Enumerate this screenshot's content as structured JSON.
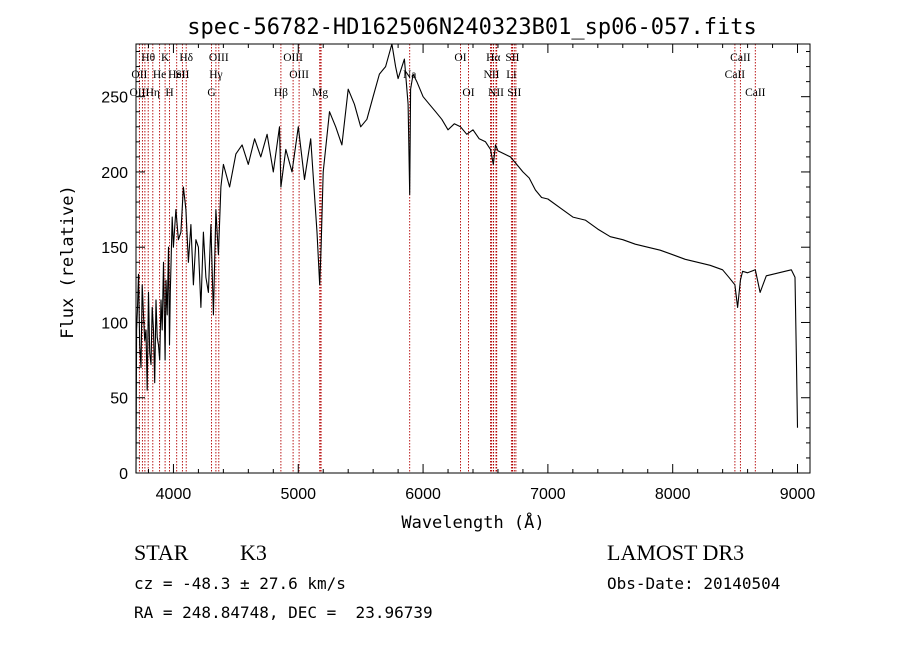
{
  "chart_data": {
    "type": "line",
    "title": "spec-56782-HD162506N240323B01_sp06-057.fits",
    "xlabel": "Wavelength (Å)",
    "ylabel": "Flux (relative)",
    "xlim": [
      3700,
      9100
    ],
    "ylim": [
      0,
      285
    ],
    "xticks": [
      4000,
      5000,
      6000,
      7000,
      8000,
      9000
    ],
    "xtick_labels": [
      "4000",
      "5000",
      "6000",
      "7000",
      "8000",
      "9000"
    ],
    "yticks": [
      0,
      50,
      100,
      150,
      200,
      250
    ],
    "ytick_labels": [
      "0",
      "50",
      "100",
      "150",
      "200",
      "250"
    ],
    "series": [
      {
        "name": "flux",
        "x": [
          3700,
          3705,
          3712,
          3720,
          3730,
          3740,
          3750,
          3760,
          3770,
          3780,
          3790,
          3800,
          3810,
          3820,
          3830,
          3840,
          3850,
          3860,
          3870,
          3880,
          3890,
          3900,
          3910,
          3920,
          3933,
          3940,
          3950,
          3960,
          3968,
          3975,
          3990,
          4000,
          4020,
          4040,
          4060,
          4080,
          4100,
          4120,
          4140,
          4160,
          4180,
          4200,
          4220,
          4240,
          4260,
          4280,
          4300,
          4320,
          4340,
          4360,
          4380,
          4400,
          4450,
          4500,
          4550,
          4600,
          4650,
          4700,
          4750,
          4800,
          4850,
          4861,
          4900,
          4950,
          5000,
          5050,
          5100,
          5150,
          5172,
          5183,
          5200,
          5250,
          5300,
          5350,
          5400,
          5450,
          5500,
          5550,
          5600,
          5650,
          5700,
          5750,
          5780,
          5800,
          5850,
          5880,
          5893,
          5900,
          5920,
          5950,
          6000,
          6050,
          6100,
          6150,
          6200,
          6250,
          6300,
          6350,
          6400,
          6450,
          6500,
          6540,
          6563,
          6580,
          6600,
          6650,
          6700,
          6750,
          6800,
          6850,
          6900,
          6950,
          7000,
          7100,
          7200,
          7300,
          7400,
          7500,
          7600,
          7700,
          7800,
          7900,
          8000,
          8100,
          8200,
          8300,
          8400,
          8450,
          8498,
          8520,
          8542,
          8560,
          8600,
          8662,
          8700,
          8750,
          8800,
          8850,
          8900,
          8950,
          8980,
          8990,
          9000
        ],
        "y": [
          0,
          95,
          110,
          132,
          85,
          70,
          125,
          105,
          88,
          95,
          55,
          120,
          80,
          72,
          110,
          95,
          60,
          115,
          90,
          85,
          75,
          115,
          95,
          140,
          75,
          128,
          105,
          150,
          85,
          120,
          170,
          150,
          175,
          155,
          160,
          190,
          175,
          140,
          165,
          125,
          155,
          150,
          110,
          160,
          130,
          120,
          165,
          105,
          175,
          145,
          190,
          205,
          190,
          212,
          218,
          205,
          222,
          210,
          225,
          200,
          230,
          190,
          215,
          200,
          230,
          195,
          222,
          160,
          125,
          150,
          200,
          240,
          230,
          218,
          255,
          245,
          230,
          235,
          250,
          265,
          270,
          285,
          270,
          262,
          275,
          245,
          185,
          255,
          265,
          260,
          250,
          245,
          240,
          235,
          228,
          232,
          230,
          225,
          228,
          222,
          220,
          215,
          205,
          218,
          214,
          212,
          210,
          205,
          200,
          196,
          188,
          183,
          182,
          176,
          170,
          168,
          162,
          157,
          155,
          152,
          150,
          148,
          145,
          142,
          140,
          138,
          135,
          130,
          125,
          110,
          128,
          134,
          133,
          135,
          120,
          131,
          132,
          133,
          134,
          135,
          130,
          80,
          30
        ]
      }
    ],
    "line_markers": [
      {
        "label": "Hθ",
        "wavelength": 3798,
        "row": 1
      },
      {
        "label": "K",
        "wavelength": 3933,
        "row": 1
      },
      {
        "label": "Hδ",
        "wavelength": 4102,
        "row": 1
      },
      {
        "label": "OIII",
        "wavelength": 4363,
        "row": 1
      },
      {
        "label": "OIII",
        "wavelength": 4959,
        "row": 1
      },
      {
        "label": "OI",
        "wavelength": 6300,
        "row": 1
      },
      {
        "label": "Hα",
        "wavelength": 6563,
        "row": 1
      },
      {
        "label": "SII",
        "wavelength": 6716,
        "row": 1
      },
      {
        "label": "CaII",
        "wavelength": 8542,
        "row": 1
      },
      {
        "label": "OII",
        "wavelength": 3727,
        "row": 2
      },
      {
        "label": "He",
        "wavelength": 3889,
        "row": 2
      },
      {
        "label": "HeI",
        "wavelength": 4026,
        "row": 2
      },
      {
        "label": "SII",
        "wavelength": 4072,
        "row": 2
      },
      {
        "label": "Hγ",
        "wavelength": 4340,
        "row": 2
      },
      {
        "label": "OIII",
        "wavelength": 5007,
        "row": 2
      },
      {
        "label": "Na",
        "wavelength": 5893,
        "row": 2
      },
      {
        "label": "NII",
        "wavelength": 6548,
        "row": 2
      },
      {
        "label": "Li",
        "wavelength": 6708,
        "row": 2
      },
      {
        "label": "CaII",
        "wavelength": 8498,
        "row": 2
      },
      {
        "label": "OIII",
        "wavelength": 3727,
        "row": 3
      },
      {
        "label": "Hη",
        "wavelength": 3835,
        "row": 3
      },
      {
        "label": "H",
        "wavelength": 3968,
        "row": 3
      },
      {
        "label": "G",
        "wavelength": 4305,
        "row": 3
      },
      {
        "label": "Hβ",
        "wavelength": 4861,
        "row": 3
      },
      {
        "label": "Mg",
        "wavelength": 5175,
        "row": 3
      },
      {
        "label": "OI",
        "wavelength": 6364,
        "row": 3
      },
      {
        "label": "NII",
        "wavelength": 6584,
        "row": 3
      },
      {
        "label": "SII",
        "wavelength": 6731,
        "row": 3
      },
      {
        "label": "CaII",
        "wavelength": 8662,
        "row": 3
      }
    ],
    "extra_marker_lines": [
      3751,
      3771,
      3889,
      4026,
      4072,
      4861,
      5172,
      5183,
      6540,
      6565,
      6590,
      6717,
      6744,
      8498,
      8662
    ]
  },
  "info": {
    "object_class": "STAR",
    "subclass": "K3",
    "survey": "LAMOST DR3",
    "redshift_line": "cz = -48.3 ± 27.6 km/s",
    "obs_date_line": "Obs-Date: 20140504",
    "coords_line": "RA = 248.84748, DEC =  23.96739"
  },
  "colors": {
    "spectrum": "#000000",
    "marker_line": "#b30000",
    "axes": "#000000",
    "background": "#ffffff"
  }
}
